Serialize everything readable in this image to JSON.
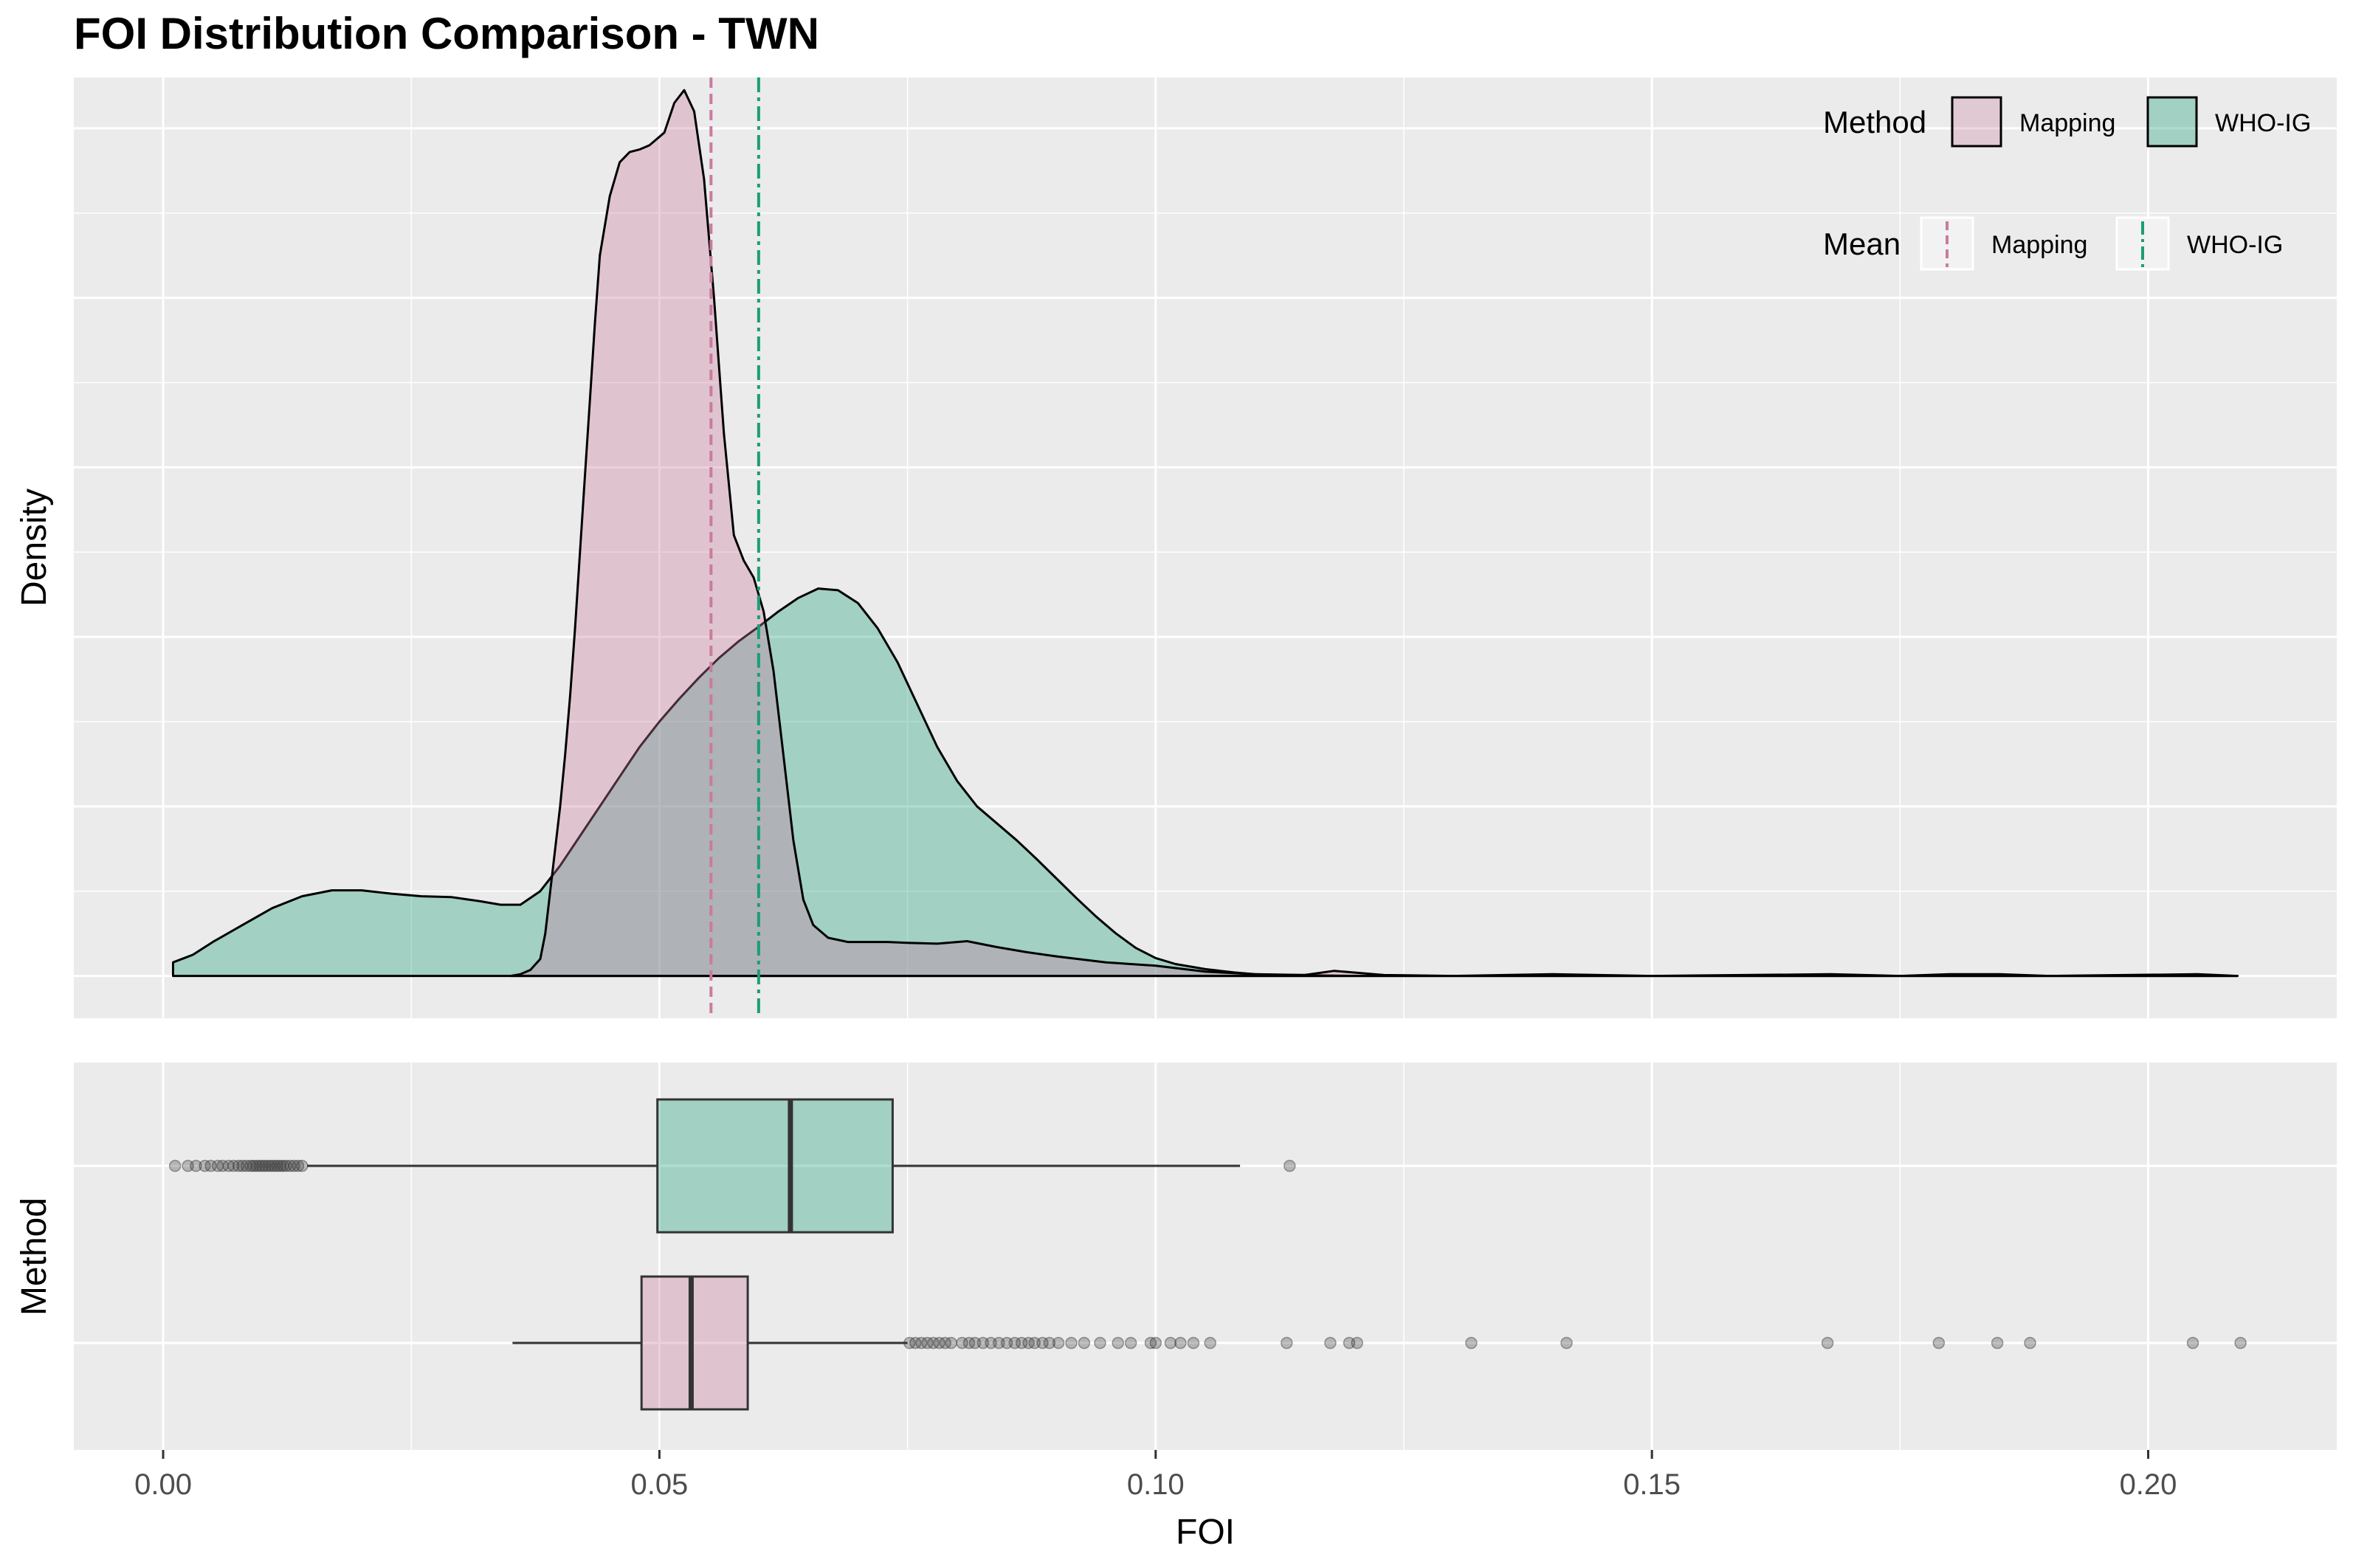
{
  "title": "FOI Distribution Comparison - TWN",
  "colors": {
    "mapping": "#C97B9F",
    "who_ig": "#1B9E77",
    "panel_bg": "#EBEBEB",
    "grid": "#FFFFFF"
  },
  "chart_data": [
    {
      "type": "area",
      "panel": "density",
      "ylabel": "Density",
      "xlim": [
        -0.009,
        0.219
      ],
      "ylim": [
        -0.05,
        1.06
      ],
      "x_ticks": [
        0.0,
        0.05,
        0.1,
        0.15,
        0.2
      ],
      "y_tick_labels_shown": false,
      "grid": true,
      "legend": {
        "placement": "top-right",
        "method_title": "Method",
        "mean_title": "Mean",
        "entries": [
          "Mapping",
          "WHO-IG"
        ]
      },
      "series": [
        {
          "name": "Mapping",
          "color": "#C97B9F",
          "points": [
            [
              0.035,
              0.0
            ],
            [
              0.036,
              0.002
            ],
            [
              0.037,
              0.007
            ],
            [
              0.038,
              0.02
            ],
            [
              0.0385,
              0.05
            ],
            [
              0.039,
              0.1
            ],
            [
              0.0395,
              0.15
            ],
            [
              0.04,
              0.2
            ],
            [
              0.0405,
              0.26
            ],
            [
              0.041,
              0.33
            ],
            [
              0.0415,
              0.41
            ],
            [
              0.042,
              0.5
            ],
            [
              0.0425,
              0.59
            ],
            [
              0.043,
              0.68
            ],
            [
              0.0435,
              0.77
            ],
            [
              0.044,
              0.85
            ],
            [
              0.045,
              0.92
            ],
            [
              0.046,
              0.96
            ],
            [
              0.047,
              0.972
            ],
            [
              0.048,
              0.975
            ],
            [
              0.049,
              0.98
            ],
            [
              0.0505,
              0.995
            ],
            [
              0.0515,
              1.03
            ],
            [
              0.0525,
              1.045
            ],
            [
              0.0535,
              1.02
            ],
            [
              0.0545,
              0.94
            ],
            [
              0.0555,
              0.8
            ],
            [
              0.0565,
              0.64
            ],
            [
              0.0575,
              0.52
            ],
            [
              0.0585,
              0.49
            ],
            [
              0.0595,
              0.47
            ],
            [
              0.0605,
              0.43
            ],
            [
              0.0615,
              0.36
            ],
            [
              0.0625,
              0.26
            ],
            [
              0.0635,
              0.16
            ],
            [
              0.0645,
              0.09
            ],
            [
              0.0655,
              0.06
            ],
            [
              0.067,
              0.045
            ],
            [
              0.069,
              0.04
            ],
            [
              0.071,
              0.04
            ],
            [
              0.073,
              0.04
            ],
            [
              0.075,
              0.039
            ],
            [
              0.078,
              0.038
            ],
            [
              0.081,
              0.041
            ],
            [
              0.084,
              0.034
            ],
            [
              0.087,
              0.028
            ],
            [
              0.09,
              0.023
            ],
            [
              0.095,
              0.016
            ],
            [
              0.1,
              0.012
            ],
            [
              0.105,
              0.005
            ],
            [
              0.11,
              0.002
            ],
            [
              0.115,
              0.001
            ],
            [
              0.118,
              0.006
            ],
            [
              0.12,
              0.004
            ],
            [
              0.123,
              0.001
            ],
            [
              0.13,
              0.0
            ],
            [
              0.14,
              0.002
            ],
            [
              0.15,
              0.0
            ],
            [
              0.168,
              0.002
            ],
            [
              0.175,
              0.0
            ],
            [
              0.18,
              0.002
            ],
            [
              0.185,
              0.002
            ],
            [
              0.19,
              0.0
            ],
            [
              0.205,
              0.002
            ],
            [
              0.209,
              0.0
            ]
          ]
        },
        {
          "name": "WHO-IG",
          "color": "#1B9E77",
          "points": [
            [
              0.001,
              0.016
            ],
            [
              0.003,
              0.025
            ],
            [
              0.005,
              0.04
            ],
            [
              0.008,
              0.06
            ],
            [
              0.011,
              0.08
            ],
            [
              0.014,
              0.094
            ],
            [
              0.017,
              0.101
            ],
            [
              0.02,
              0.101
            ],
            [
              0.023,
              0.097
            ],
            [
              0.026,
              0.094
            ],
            [
              0.029,
              0.093
            ],
            [
              0.032,
              0.088
            ],
            [
              0.034,
              0.084
            ],
            [
              0.036,
              0.084
            ],
            [
              0.038,
              0.1
            ],
            [
              0.04,
              0.13
            ],
            [
              0.042,
              0.165
            ],
            [
              0.044,
              0.2
            ],
            [
              0.046,
              0.235
            ],
            [
              0.048,
              0.27
            ],
            [
              0.05,
              0.3
            ],
            [
              0.052,
              0.327
            ],
            [
              0.054,
              0.352
            ],
            [
              0.056,
              0.375
            ],
            [
              0.058,
              0.395
            ],
            [
              0.06,
              0.412
            ],
            [
              0.062,
              0.43
            ],
            [
              0.064,
              0.446
            ],
            [
              0.066,
              0.457
            ],
            [
              0.068,
              0.455
            ],
            [
              0.07,
              0.44
            ],
            [
              0.072,
              0.41
            ],
            [
              0.074,
              0.37
            ],
            [
              0.076,
              0.32
            ],
            [
              0.078,
              0.27
            ],
            [
              0.08,
              0.23
            ],
            [
              0.082,
              0.2
            ],
            [
              0.084,
              0.18
            ],
            [
              0.086,
              0.16
            ],
            [
              0.088,
              0.138
            ],
            [
              0.09,
              0.115
            ],
            [
              0.092,
              0.092
            ],
            [
              0.094,
              0.07
            ],
            [
              0.096,
              0.05
            ],
            [
              0.098,
              0.033
            ],
            [
              0.1,
              0.021
            ],
            [
              0.102,
              0.014
            ],
            [
              0.105,
              0.008
            ],
            [
              0.108,
              0.004
            ],
            [
              0.11,
              0.002
            ],
            [
              0.113,
              0.001
            ],
            [
              0.115,
              0.001
            ],
            [
              0.12,
              0.0
            ],
            [
              0.209,
              0.0
            ]
          ]
        }
      ],
      "means": [
        {
          "name": "Mapping",
          "x": 0.0552,
          "color": "#C97B9F",
          "linetype": "dashed"
        },
        {
          "name": "WHO-IG",
          "x": 0.06,
          "color": "#1B9E77",
          "linetype": "dashdot"
        }
      ]
    },
    {
      "type": "box",
      "panel": "boxplot",
      "xlabel": "FOI",
      "ylabel": "Method",
      "xlim": [
        -0.009,
        0.219
      ],
      "x_tick_labels": [
        "0.00",
        "0.05",
        "0.10",
        "0.15",
        "0.20"
      ],
      "x_ticks": [
        0.0,
        0.05,
        0.1,
        0.15,
        0.2
      ],
      "boxes": [
        {
          "name": "WHO-IG",
          "row": 1,
          "color": "#1B9E77",
          "whisker_low": 0.0145,
          "q1": 0.0498,
          "median": 0.0632,
          "q3": 0.0735,
          "whisker_high": 0.1085,
          "outliers": [
            0.0012,
            0.0025,
            0.0033,
            0.0042,
            0.0048,
            0.0055,
            0.006,
            0.0066,
            0.0071,
            0.0076,
            0.008,
            0.0084,
            0.0088,
            0.0091,
            0.0094,
            0.0097,
            0.01,
            0.0103,
            0.0106,
            0.0109,
            0.0112,
            0.0115,
            0.0118,
            0.0121,
            0.0124,
            0.0128,
            0.0132,
            0.0136,
            0.014,
            0.1135
          ]
        },
        {
          "name": "Mapping",
          "row": 0,
          "color": "#C97B9F",
          "whisker_low": 0.0352,
          "q1": 0.0482,
          "median": 0.0532,
          "q3": 0.0589,
          "whisker_high": 0.075,
          "outliers": [
            0.0752,
            0.0758,
            0.0764,
            0.077,
            0.0776,
            0.0782,
            0.0788,
            0.0794,
            0.0805,
            0.0812,
            0.0818,
            0.0826,
            0.0834,
            0.0842,
            0.085,
            0.0858,
            0.0865,
            0.0872,
            0.0878,
            0.0886,
            0.0893,
            0.0902,
            0.0915,
            0.0928,
            0.0944,
            0.0962,
            0.0975,
            0.0995,
            0.1,
            0.1015,
            0.1025,
            0.1038,
            0.1055,
            0.1132,
            0.1176,
            0.1195,
            0.1203,
            0.1318,
            0.1414,
            0.1677,
            0.1789,
            0.1848,
            0.1881,
            0.2045,
            0.2093
          ]
        }
      ]
    }
  ]
}
